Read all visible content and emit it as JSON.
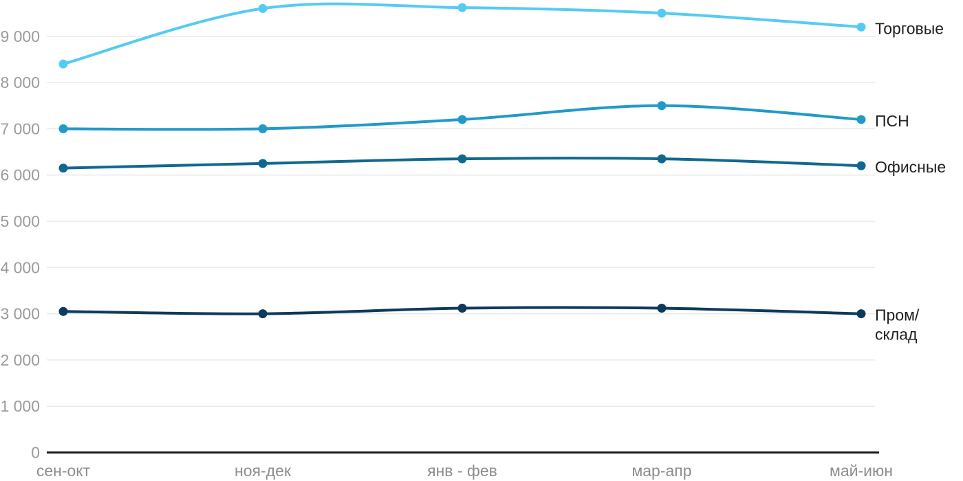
{
  "chart_data": {
    "type": "line",
    "categories": [
      "сен-окт",
      "ноя-дек",
      "янв - фев",
      "мар-апр",
      "май-июн"
    ],
    "series": [
      {
        "name": "Торговые",
        "label_lines": [
          "Торговые"
        ],
        "values": [
          8400,
          9600,
          9620,
          9500,
          9200
        ],
        "color": "#56CBF2"
      },
      {
        "name": "ПСН",
        "label_lines": [
          "ПСН"
        ],
        "values": [
          7000,
          7000,
          7200,
          7500,
          7200
        ],
        "color": "#2199C9"
      },
      {
        "name": "Офисные",
        "label_lines": [
          "Офисные"
        ],
        "values": [
          6150,
          6250,
          6350,
          6350,
          6200
        ],
        "color": "#11688F"
      },
      {
        "name": "Пром/склад",
        "label_lines": [
          "Пром/",
          "склад"
        ],
        "values": [
          3050,
          3000,
          3120,
          3120,
          3000
        ],
        "color": "#0D3A5C"
      }
    ],
    "title": "",
    "xlabel": "",
    "ylabel": "",
    "ylim": [
      0,
      9700
    ],
    "yticks": [
      0,
      1000,
      2000,
      3000,
      4000,
      5000,
      6000,
      7000,
      8000,
      9000
    ],
    "ytick_labels": [
      "0",
      "1 000",
      "2 000",
      "3 000",
      "4 000",
      "5 000",
      "6 000",
      "7 000",
      "8 000",
      "9 000"
    ],
    "grid": true,
    "legend_position": "right-end-labels"
  },
  "colors": {
    "background": "#ffffff",
    "grid_line": "#e9e9e9",
    "axis_line": "#1a1a1a",
    "ytick_label": "#9b9b9b",
    "xtick_label": "#8d8d8d",
    "series_label": "#1f1f1f"
  }
}
